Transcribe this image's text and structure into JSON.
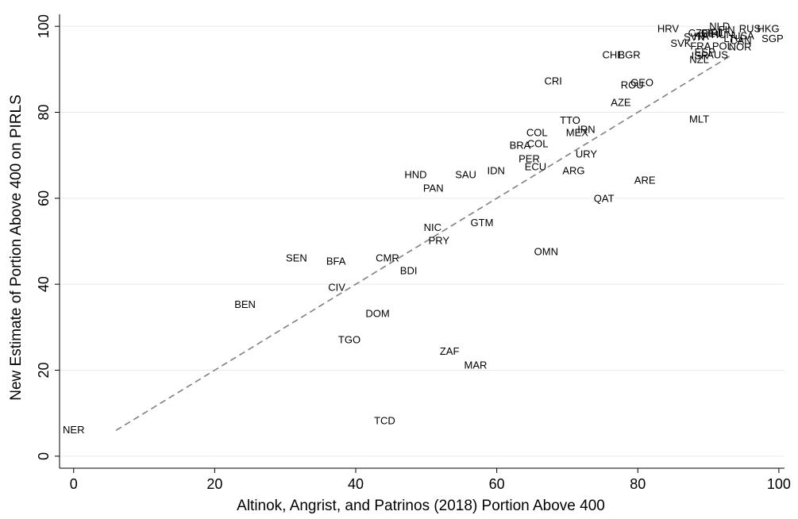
{
  "chart_data": {
    "type": "scatter",
    "xlabel": "Altinok, Angrist, and Patrinos (2018) Portion Above 400",
    "ylabel": "New Estimate of Portion Above 400 on PIRLS",
    "xlim": [
      -2,
      100.8
    ],
    "ylim": [
      -2.8,
      102.8
    ],
    "xticks": [
      0,
      20,
      40,
      60,
      80,
      100
    ],
    "yticks": [
      0,
      20,
      40,
      60,
      80,
      100
    ],
    "grid": true,
    "color": "#000000",
    "point_labels": [
      "NER",
      "TCD",
      "BEN",
      "TGO",
      "ZAF",
      "MAR",
      "DOM",
      "CIV",
      "SEN",
      "BFA",
      "CMR",
      "BDI",
      "NIC",
      "PRY",
      "GTM",
      "OMN",
      "HND",
      "PAN",
      "SAU",
      "IDN",
      "BRA",
      "COL",
      "COL",
      "PER",
      "ECU",
      "ARG",
      "URY",
      "MEX",
      "IRN",
      "TTO",
      "QAT",
      "ARE",
      "AZE",
      "GEO",
      "ROU",
      "CRI",
      "MLT",
      "CHE",
      "BGR",
      "HRV",
      "NZL",
      "NLD",
      "RUS",
      "HKG",
      "SGP",
      "CZE",
      "SVK",
      "FRA",
      "AUS",
      "FIN",
      "DEU",
      "ITA",
      "HUN",
      "LTU",
      "POL",
      "IRL",
      "NOR",
      "ESP",
      "ISR",
      "USA",
      "CAN",
      "SVN"
    ],
    "x": [
      0,
      44.1,
      24.3,
      39.1,
      53.3,
      57.0,
      43.1,
      37.3,
      31.6,
      37.2,
      44.5,
      47.5,
      50.9,
      51.8,
      57.9,
      67.0,
      48.5,
      51.0,
      55.6,
      59.9,
      63.3,
      65.7,
      65.8,
      64.6,
      65.5,
      70.9,
      72.7,
      71.4,
      72.7,
      70.4,
      75.2,
      81.0,
      77.6,
      80.6,
      79.2,
      68.0,
      88.7,
      76.5,
      78.8,
      84.3,
      88.7,
      91.6,
      95.9,
      98.5,
      99.1,
      88.6,
      86.1,
      88.9,
      91.3,
      92.6,
      90.5,
      89.0,
      92.0,
      93.5,
      92.0,
      91.0,
      94.5,
      89.5,
      88.8,
      95.0,
      94.6,
      88.0
    ],
    "values": [
      6,
      8.1,
      35.1,
      26.9,
      24.2,
      21.0,
      33.0,
      39.1,
      45.9,
      45.2,
      45.9,
      43.0,
      53.0,
      50.0,
      54.1,
      47.4,
      65.3,
      62.2,
      65.3,
      66.2,
      72.1,
      75.1,
      72.5,
      69.0,
      67.2,
      66.2,
      70.1,
      75.1,
      75.8,
      78.0,
      59.8,
      64.0,
      82.1,
      86.7,
      86.2,
      87.1,
      78.2,
      93.2,
      93.2,
      99.3,
      92.1,
      99.8,
      99.3,
      99.3,
      97.0,
      98.3,
      95.9,
      95.2,
      93.2,
      99.0,
      98.2,
      97.5,
      97.9,
      97.0,
      95.2,
      98.4,
      95.0,
      93.8,
      93.0,
      97.6,
      96.5,
      97.3
    ],
    "reference_line": {
      "x": [
        6,
        93
      ],
      "y": [
        6,
        93
      ],
      "color": "#808080",
      "dashed": true
    }
  }
}
